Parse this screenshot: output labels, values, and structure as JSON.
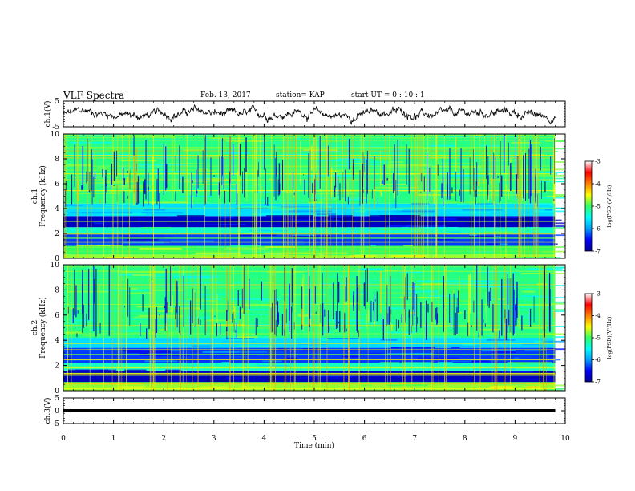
{
  "header": {
    "title": "VLF Spectra",
    "date": "Feb. 13, 2017",
    "station": "station= KAP",
    "start_ut": "start  UT  =   0  : 10 : 1"
  },
  "chart_data": [
    {
      "type": "line",
      "panel": "ch1-waveform",
      "ylabel": "ch.1(V)",
      "xlim": [
        0,
        10
      ],
      "ylim": [
        -5,
        5
      ],
      "yticks": [
        "5",
        "-5"
      ],
      "data_extent_min": 9.8,
      "line_color": "#000000",
      "description_values": "noisy voltage trace fluctuating roughly between -4 and 3 V"
    },
    {
      "type": "heatmap",
      "panel": "ch1-spectrogram",
      "ylabel_line1": "ch.1",
      "ylabel_line2": "Frequency  (kHz)",
      "xlim": [
        0,
        10
      ],
      "ylim": [
        0,
        10
      ],
      "yticks": [
        "0",
        "2",
        "4",
        "6",
        "8",
        "10"
      ],
      "data_extent_min": 9.8,
      "colorbar": {
        "label": "log(PSD)(V²/Hz)",
        "range": [
          -7,
          -3
        ],
        "ticks": [
          "-3",
          "-4",
          "-5",
          "-6",
          "-7"
        ],
        "colors": [
          "#00009a",
          "#0000ff",
          "#00a0ff",
          "#00ffff",
          "#30ff60",
          "#ffff00",
          "#ff8000",
          "#ff0000",
          "#ffffff"
        ]
      },
      "bands_khz": [
        {
          "from": 0.0,
          "to": 0.3,
          "level": "high"
        },
        {
          "from": 0.3,
          "to": 1.0,
          "level": "high-mid"
        },
        {
          "from": 1.0,
          "to": 2.0,
          "level": "low"
        },
        {
          "from": 2.0,
          "to": 2.5,
          "level": "mid"
        },
        {
          "from": 2.5,
          "to": 3.4,
          "level": "very-low"
        },
        {
          "from": 3.4,
          "to": 4.4,
          "level": "low-mid"
        },
        {
          "from": 4.4,
          "to": 10.0,
          "level": "mid-high"
        }
      ]
    },
    {
      "type": "heatmap",
      "panel": "ch2-spectrogram",
      "ylabel_line1": "ch.2",
      "ylabel_line2": "Frequency  (kHz)",
      "xlim": [
        0,
        10
      ],
      "ylim": [
        0,
        10
      ],
      "yticks": [
        "0",
        "2",
        "4",
        "6",
        "8",
        "10"
      ],
      "data_extent_min": 9.8,
      "colorbar": {
        "label": "log(PSD)(V²/Hz)",
        "range": [
          -7,
          -3
        ],
        "ticks": [
          "-3",
          "-4",
          "-5",
          "-6",
          "-7"
        ],
        "colors": [
          "#00009a",
          "#0000ff",
          "#00a0ff",
          "#00ffff",
          "#30ff60",
          "#ffff00",
          "#ff8000",
          "#ff0000",
          "#ffffff"
        ]
      },
      "bands_khz": [
        {
          "from": 0.0,
          "to": 0.6,
          "level": "high"
        },
        {
          "from": 0.6,
          "to": 1.6,
          "level": "very-low"
        },
        {
          "from": 1.6,
          "to": 2.2,
          "level": "mid"
        },
        {
          "from": 2.2,
          "to": 3.4,
          "level": "low"
        },
        {
          "from": 3.4,
          "to": 4.2,
          "level": "low-mid"
        },
        {
          "from": 4.2,
          "to": 10.0,
          "level": "mid-high"
        }
      ]
    },
    {
      "type": "line",
      "panel": "ch3-waveform",
      "ylabel": "ch.3(V)",
      "xlim": [
        0,
        10
      ],
      "ylim": [
        -5,
        5
      ],
      "yticks": [
        "5",
        "0",
        "-5"
      ],
      "value": 0,
      "data_extent_min": 9.8,
      "line_color": "#000000"
    }
  ],
  "x_axis": {
    "label": "Time  (min)",
    "ticks": [
      "0",
      "1",
      "2",
      "3",
      "4",
      "5",
      "6",
      "7",
      "8",
      "9",
      "10"
    ]
  }
}
